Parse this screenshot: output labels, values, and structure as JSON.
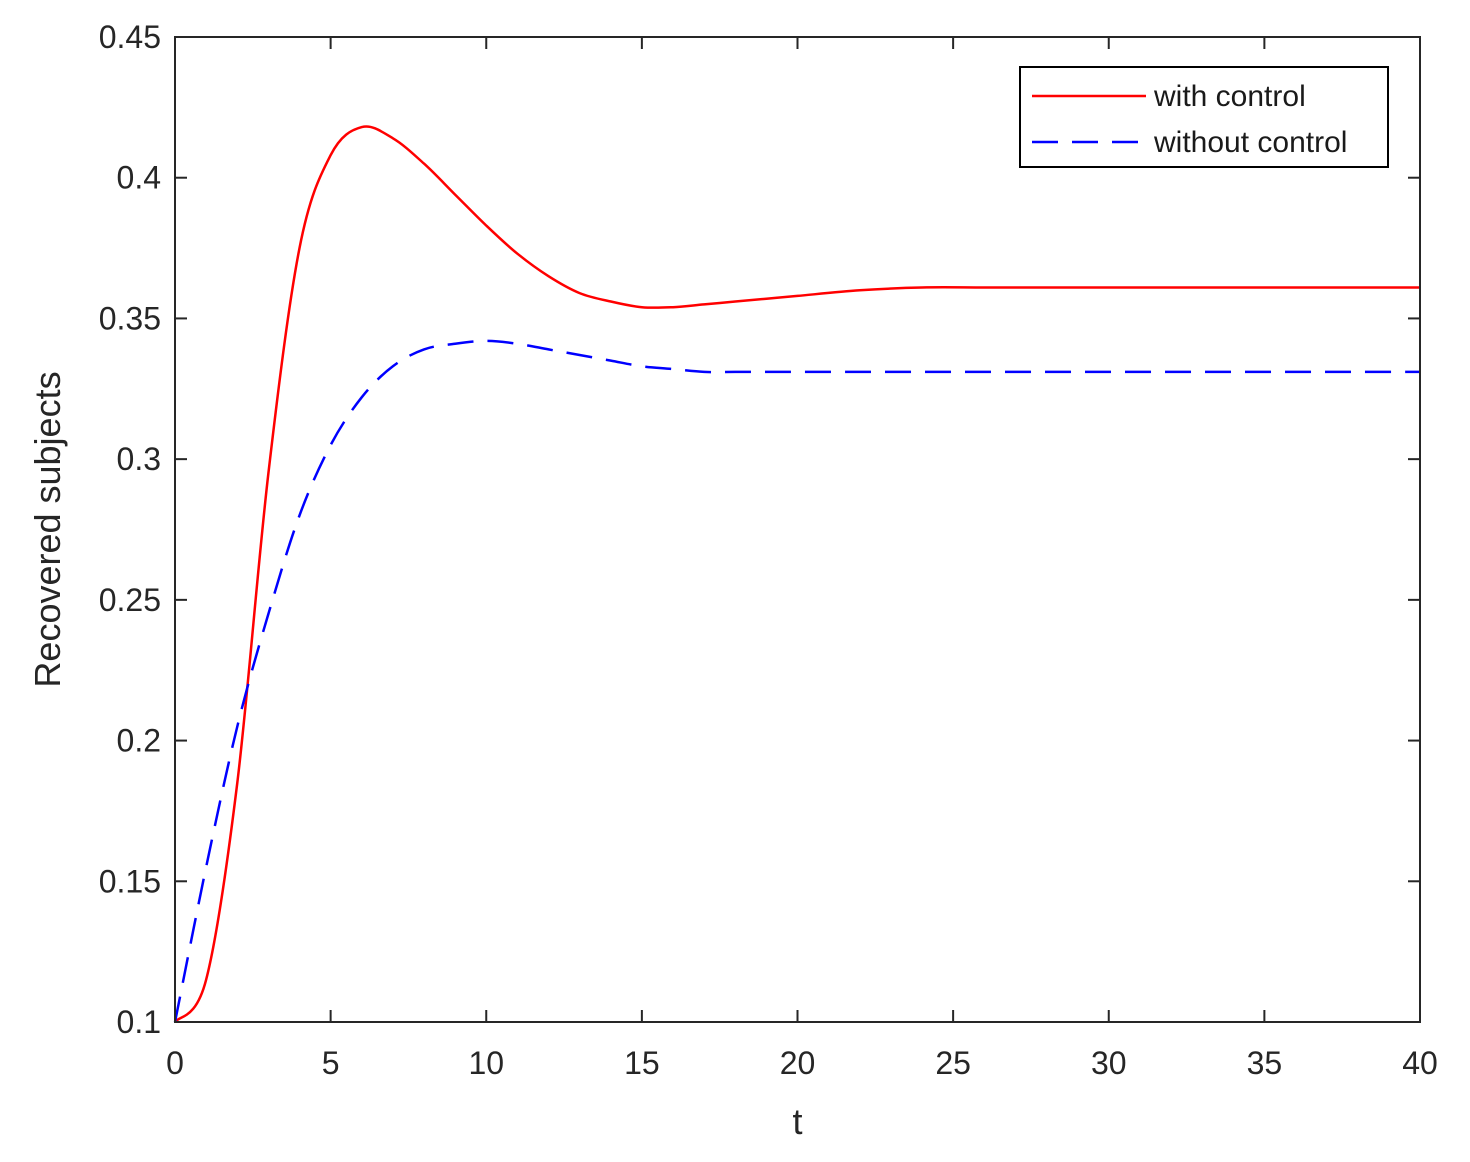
{
  "chart_data": {
    "type": "line",
    "title": "",
    "xlabel": "t",
    "ylabel": "Recovered subjects",
    "xlim": [
      0,
      40
    ],
    "ylim": [
      0.1,
      0.45
    ],
    "xticks": [
      0,
      5,
      10,
      15,
      20,
      25,
      30,
      35,
      40
    ],
    "yticks": [
      0.1,
      0.15,
      0.2,
      0.25,
      0.3,
      0.35,
      0.4,
      0.45
    ],
    "xtick_labels": [
      "0",
      "5",
      "10",
      "15",
      "20",
      "25",
      "30",
      "35",
      "40"
    ],
    "ytick_labels": [
      "0.1",
      "0.15",
      "0.2",
      "0.25",
      "0.3",
      "0.35",
      "0.4",
      "0.45"
    ],
    "grid": false,
    "box": true,
    "legend_position": "top-right",
    "series": [
      {
        "name": "with control",
        "color": "#ff0000",
        "style": "solid",
        "x": [
          0,
          1,
          2,
          3,
          4,
          5,
          6,
          7,
          8,
          9,
          10,
          11,
          12,
          13,
          14,
          15,
          16,
          17,
          18,
          19,
          20,
          22,
          24,
          26,
          28,
          30,
          32,
          34,
          36,
          38,
          40
        ],
        "y": [
          0.1,
          0.115,
          0.185,
          0.295,
          0.375,
          0.408,
          0.418,
          0.414,
          0.405,
          0.394,
          0.383,
          0.373,
          0.365,
          0.359,
          0.356,
          0.354,
          0.354,
          0.355,
          0.356,
          0.357,
          0.358,
          0.36,
          0.361,
          0.361,
          0.361,
          0.361,
          0.361,
          0.361,
          0.361,
          0.361,
          0.361
        ]
      },
      {
        "name": "without control",
        "color": "#0000ff",
        "style": "dashed",
        "x": [
          0,
          1,
          2,
          3,
          4,
          5,
          6,
          7,
          8,
          9,
          10,
          11,
          12,
          13,
          14,
          15,
          16,
          17,
          18,
          19,
          20,
          22,
          24,
          26,
          28,
          30,
          32,
          34,
          36,
          38,
          40
        ],
        "y": [
          0.1,
          0.155,
          0.205,
          0.245,
          0.28,
          0.305,
          0.322,
          0.333,
          0.339,
          0.341,
          0.342,
          0.341,
          0.339,
          0.337,
          0.335,
          0.333,
          0.332,
          0.331,
          0.331,
          0.331,
          0.331,
          0.331,
          0.331,
          0.331,
          0.331,
          0.331,
          0.331,
          0.331,
          0.331,
          0.331,
          0.331
        ]
      }
    ]
  }
}
